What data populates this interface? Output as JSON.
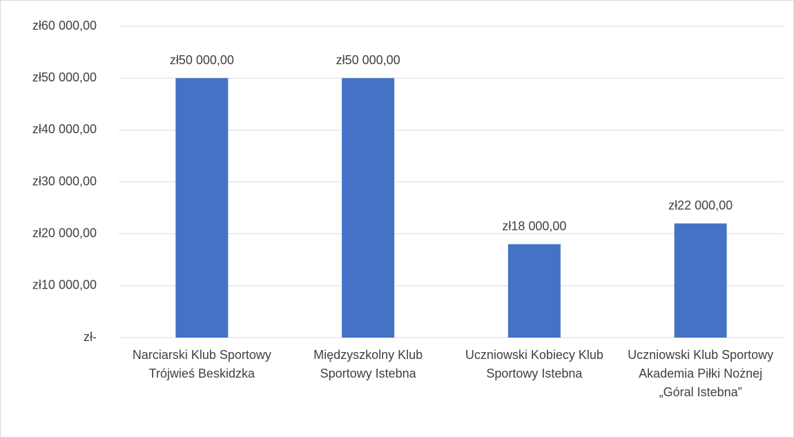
{
  "chart_data": {
    "type": "bar",
    "categories": [
      "Narciarski Klub Sportowy Trójwieś Beskidzka",
      "Międzyszkolny Klub Sportowy Istebna",
      "Uczniowski Kobiecy Klub Sportowy Istebna",
      "Uczniowski Klub Sportowy Akademia Piłki Nożnej „Góral Istebna”"
    ],
    "values": [
      50000,
      50000,
      18000,
      22000
    ],
    "value_labels": [
      "zł50 000,00",
      "zł50 000,00",
      "zł18 000,00",
      "zł22 000,00"
    ],
    "color": "#4472c4",
    "ylim": [
      0,
      60000
    ],
    "yticks": [
      {
        "value": 0,
        "label": "zł-"
      },
      {
        "value": 10000,
        "label": "zł10 000,00"
      },
      {
        "value": 20000,
        "label": "zł20 000,00"
      },
      {
        "value": 30000,
        "label": "zł30 000,00"
      },
      {
        "value": 40000,
        "label": "zł40 000,00"
      },
      {
        "value": 50000,
        "label": "zł50 000,00"
      },
      {
        "value": 60000,
        "label": "zł60 000,00"
      }
    ],
    "grid": true
  }
}
